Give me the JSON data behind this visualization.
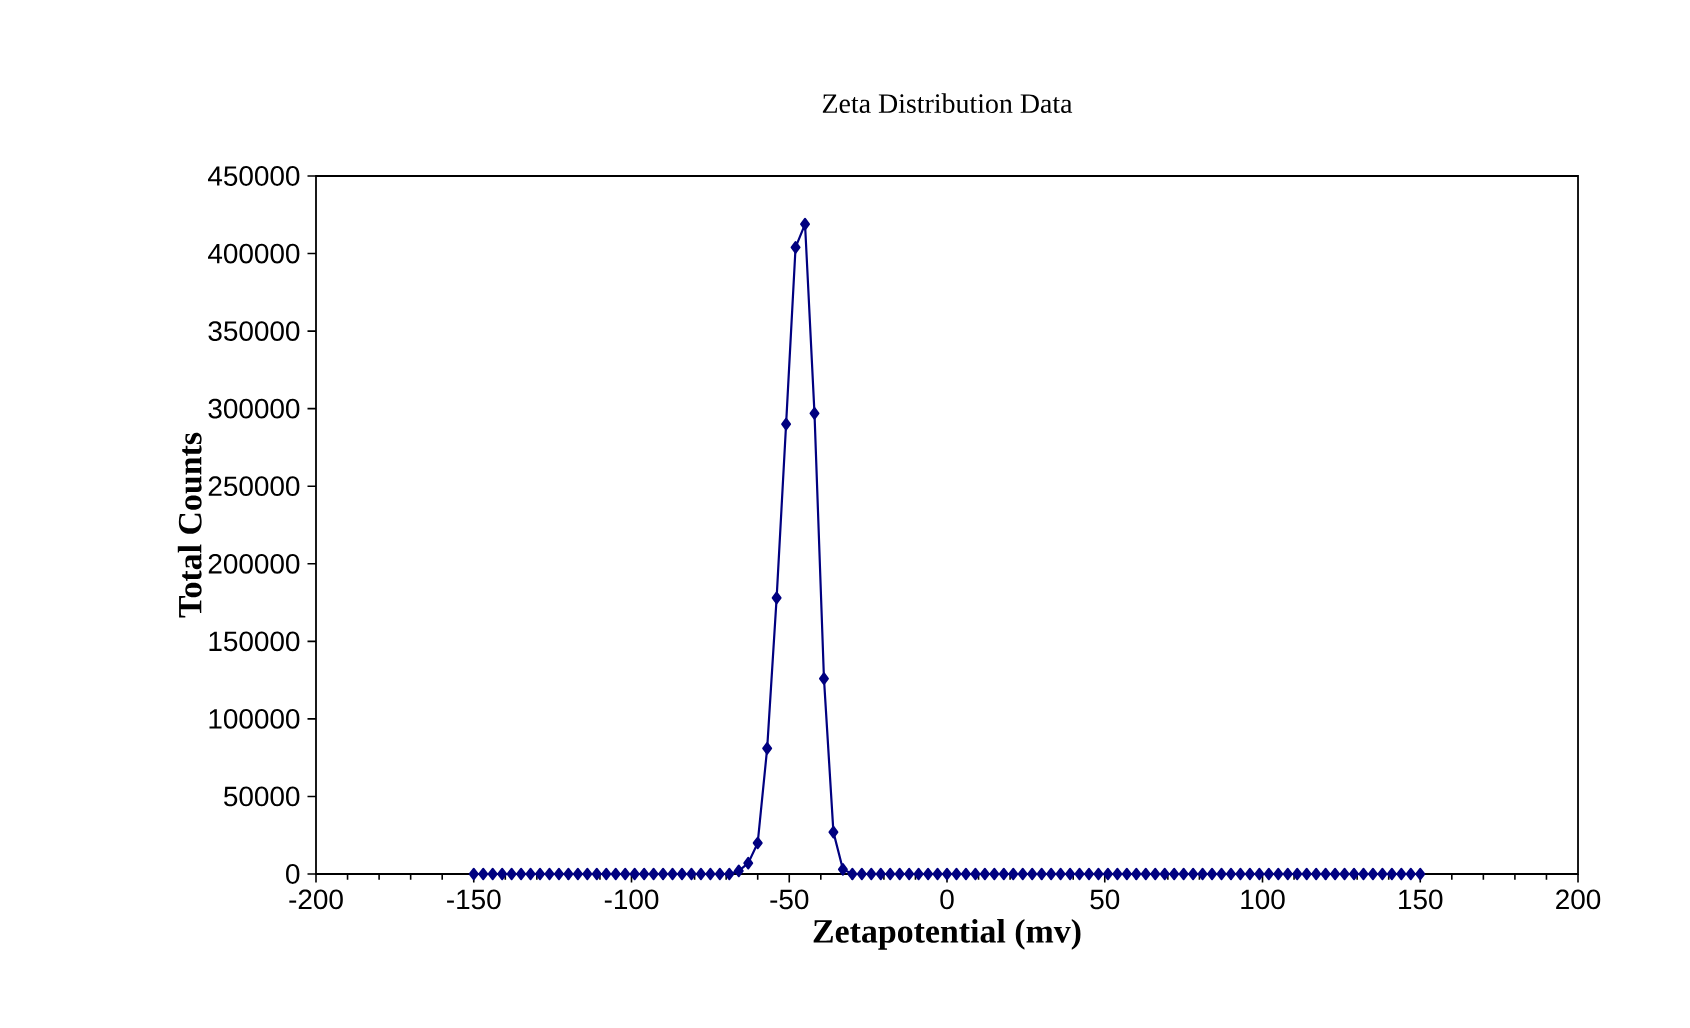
{
  "chart_data": {
    "type": "line",
    "title": "Zeta Distribution Data",
    "xlabel": "Zetapotential (mv)",
    "ylabel": "Total Counts",
    "x": [
      -150,
      -147,
      -144,
      -141,
      -138,
      -135,
      -132,
      -129,
      -126,
      -123,
      -120,
      -117,
      -114,
      -111,
      -108,
      -105,
      -102,
      -99,
      -96,
      -93,
      -90,
      -87,
      -84,
      -81,
      -78,
      -75,
      -72,
      -69,
      -66,
      -63,
      -60,
      -57,
      -54,
      -51,
      -48,
      -45,
      -42,
      -39,
      -36,
      -33,
      -30,
      -27,
      -24,
      -21,
      -18,
      -15,
      -12,
      -9,
      -6,
      -3,
      0,
      3,
      6,
      9,
      12,
      15,
      18,
      21,
      24,
      27,
      30,
      33,
      36,
      39,
      42,
      45,
      48,
      51,
      54,
      57,
      60,
      63,
      66,
      69,
      72,
      75,
      78,
      81,
      84,
      87,
      90,
      93,
      96,
      99,
      102,
      105,
      108,
      111,
      114,
      117,
      120,
      123,
      126,
      129,
      132,
      135,
      138,
      141,
      144,
      147,
      150
    ],
    "series": [
      {
        "color": "#000080",
        "values": [
          0,
          0,
          0,
          0,
          0,
          0,
          0,
          0,
          0,
          0,
          0,
          0,
          0,
          0,
          0,
          0,
          0,
          0,
          0,
          0,
          0,
          0,
          0,
          0,
          0,
          0,
          0,
          0,
          2000,
          7000,
          20000,
          81000,
          178000,
          290000,
          404000,
          419000,
          297000,
          126000,
          27000,
          3000,
          0,
          0,
          0,
          0,
          0,
          0,
          0,
          0,
          0,
          0,
          0,
          0,
          0,
          0,
          0,
          0,
          0,
          0,
          0,
          0,
          0,
          0,
          0,
          0,
          0,
          0,
          0,
          0,
          0,
          0,
          0,
          0,
          0,
          0,
          0,
          0,
          0,
          0,
          0,
          0,
          0,
          0,
          0,
          0,
          0,
          0,
          0,
          0,
          0,
          0,
          0,
          0,
          0,
          0,
          0,
          0,
          0,
          0,
          0,
          0,
          0
        ]
      }
    ],
    "xlim": [
      -200,
      200
    ],
    "xticks": [
      -200,
      -150,
      -100,
      -50,
      0,
      50,
      100,
      150,
      200
    ],
    "ylim": [
      0,
      450000
    ],
    "yticks": [
      0,
      50000,
      100000,
      150000,
      200000,
      250000,
      300000,
      350000,
      400000,
      450000
    ],
    "grid": false,
    "marker": "diamond",
    "line_style": "solid"
  }
}
